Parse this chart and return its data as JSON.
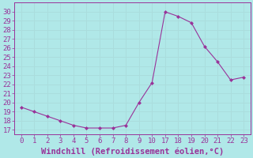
{
  "x_labels": [
    0,
    1,
    2,
    3,
    4,
    5,
    6,
    7,
    8,
    9,
    10,
    17,
    18,
    19,
    20,
    21,
    22,
    23
  ],
  "y_vals": [
    19.5,
    19.0,
    18.5,
    18.0,
    17.5,
    17.2,
    17.2,
    17.2,
    17.5,
    20.0,
    22.2,
    30.0,
    29.5,
    28.8,
    26.2,
    24.5,
    22.5,
    22.8
  ],
  "yticks": [
    17,
    18,
    19,
    20,
    21,
    22,
    23,
    24,
    25,
    26,
    27,
    28,
    29,
    30
  ],
  "ylim": [
    16.5,
    31.0
  ],
  "line_color": "#993399",
  "marker_color": "#993399",
  "bg_color": "#b0e8e8",
  "grid_color": "#aadddd",
  "xlabel": "Windchill (Refroidissement éolien,°C)",
  "xlabel_color": "#993399",
  "tick_color": "#993399",
  "xlabel_fontsize": 7.5,
  "tick_fontsize": 6.5
}
